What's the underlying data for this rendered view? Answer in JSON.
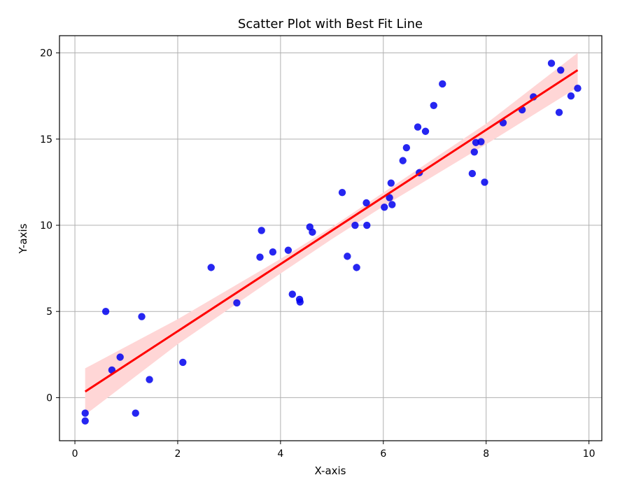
{
  "chart_data": {
    "type": "scatter",
    "title": "Scatter Plot with Best Fit Line",
    "xlabel": "X-axis",
    "ylabel": "Y-axis",
    "xlim": [
      -0.3,
      10.25
    ],
    "ylim": [
      -2.5,
      21.0
    ],
    "xticks": [
      0,
      2,
      4,
      6,
      8,
      10
    ],
    "yticks": [
      0,
      5,
      10,
      15,
      20
    ],
    "grid": true,
    "point_color": "#0000ee",
    "line_color": "#ff0000",
    "band_color": "#ffd6d6",
    "points": [
      {
        "x": 0.2,
        "y": -0.9
      },
      {
        "x": 0.2,
        "y": -1.35
      },
      {
        "x": 0.6,
        "y": 5.0
      },
      {
        "x": 0.72,
        "y": 1.6
      },
      {
        "x": 0.88,
        "y": 2.35
      },
      {
        "x": 1.18,
        "y": -0.9
      },
      {
        "x": 1.3,
        "y": 4.7
      },
      {
        "x": 1.45,
        "y": 1.05
      },
      {
        "x": 2.1,
        "y": 2.05
      },
      {
        "x": 2.65,
        "y": 7.55
      },
      {
        "x": 3.15,
        "y": 5.5
      },
      {
        "x": 3.6,
        "y": 8.15
      },
      {
        "x": 3.63,
        "y": 9.7
      },
      {
        "x": 3.85,
        "y": 8.45
      },
      {
        "x": 4.15,
        "y": 8.55
      },
      {
        "x": 4.23,
        "y": 6.0
      },
      {
        "x": 4.37,
        "y": 5.7
      },
      {
        "x": 4.38,
        "y": 5.55
      },
      {
        "x": 4.57,
        "y": 9.9
      },
      {
        "x": 4.62,
        "y": 9.6
      },
      {
        "x": 5.2,
        "y": 11.9
      },
      {
        "x": 5.3,
        "y": 8.2
      },
      {
        "x": 5.45,
        "y": 10.0
      },
      {
        "x": 5.48,
        "y": 7.55
      },
      {
        "x": 5.67,
        "y": 11.3
      },
      {
        "x": 5.68,
        "y": 10.0
      },
      {
        "x": 6.02,
        "y": 11.05
      },
      {
        "x": 6.12,
        "y": 11.6
      },
      {
        "x": 6.15,
        "y": 12.45
      },
      {
        "x": 6.17,
        "y": 11.2
      },
      {
        "x": 6.38,
        "y": 13.75
      },
      {
        "x": 6.45,
        "y": 14.5
      },
      {
        "x": 6.67,
        "y": 15.7
      },
      {
        "x": 6.7,
        "y": 13.05
      },
      {
        "x": 6.82,
        "y": 15.45
      },
      {
        "x": 6.98,
        "y": 16.95
      },
      {
        "x": 7.15,
        "y": 18.2
      },
      {
        "x": 7.73,
        "y": 13.0
      },
      {
        "x": 7.77,
        "y": 14.25
      },
      {
        "x": 7.8,
        "y": 14.8
      },
      {
        "x": 7.9,
        "y": 14.85
      },
      {
        "x": 7.97,
        "y": 12.5
      },
      {
        "x": 8.33,
        "y": 15.95
      },
      {
        "x": 8.7,
        "y": 16.7
      },
      {
        "x": 8.92,
        "y": 17.45
      },
      {
        "x": 9.27,
        "y": 19.4
      },
      {
        "x": 9.42,
        "y": 16.55
      },
      {
        "x": 9.45,
        "y": 19.0
      },
      {
        "x": 9.65,
        "y": 17.5
      },
      {
        "x": 9.78,
        "y": 17.95
      }
    ],
    "fit_line": {
      "x": [
        0.2,
        9.78
      ],
      "y": [
        0.35,
        19.0
      ]
    },
    "confidence_band": {
      "x": [
        0.2,
        2.0,
        4.0,
        5.0,
        6.0,
        8.0,
        9.78
      ],
      "upper": [
        1.7,
        4.55,
        8.05,
        9.9,
        11.9,
        15.9,
        20.0
      ],
      "lower": [
        -1.0,
        3.1,
        7.2,
        9.2,
        11.1,
        14.7,
        18.0
      ]
    }
  }
}
